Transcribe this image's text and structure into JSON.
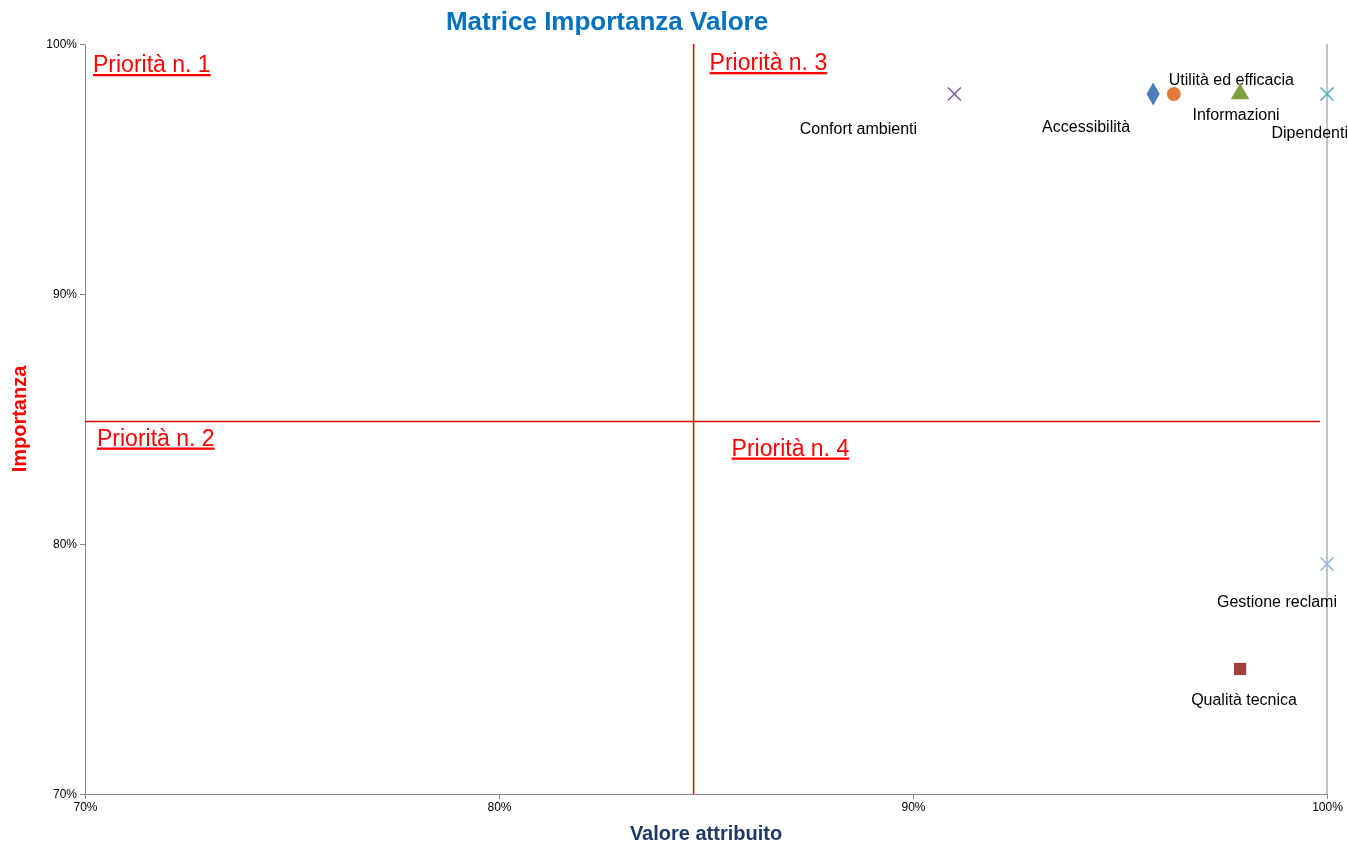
{
  "chart_data": {
    "type": "scatter",
    "title": "Matrice Importanza Valore",
    "xlabel": "Valore attribuito",
    "ylabel": "Importanza",
    "xlim": [
      70,
      100
    ],
    "ylim": [
      70,
      100
    ],
    "xticks": [
      {
        "value": 70,
        "label": "70%"
      },
      {
        "value": 80,
        "label": "80%"
      },
      {
        "value": 90,
        "label": "90%"
      },
      {
        "value": 100,
        "label": "100%"
      }
    ],
    "yticks": [
      {
        "value": 70,
        "label": "70%"
      },
      {
        "value": 80,
        "label": "80%"
      },
      {
        "value": 90,
        "label": "90%"
      },
      {
        "value": 100,
        "label": "100%"
      }
    ],
    "grid": false,
    "legend": false,
    "series": [
      {
        "name": "Accessibilità",
        "color": "#4a7ebb",
        "marker": "diamond",
        "x": [
          95.8
        ],
        "values": [
          98.0
        ]
      },
      {
        "name": "Utilità ed efficacia",
        "color": "#e07b39",
        "marker": "circle",
        "x": [
          96.3
        ],
        "values": [
          98.0
        ]
      },
      {
        "name": "Informazioni",
        "color": "#7f9f3f",
        "marker": "triangle",
        "x": [
          97.9
        ],
        "values": [
          98.0
        ]
      },
      {
        "name": "Dipendenti",
        "color": "#4bacc6",
        "marker": "cross",
        "x": [
          100
        ],
        "values": [
          98.0
        ]
      },
      {
        "name": "Confort ambienti",
        "color": "#7f5f9f",
        "marker": "cross",
        "x": [
          91.0
        ],
        "values": [
          98.0
        ]
      },
      {
        "name": "Gestione reclami",
        "color": "#8eb4e3",
        "marker": "cross",
        "x": [
          100
        ],
        "values": [
          79.2
        ]
      },
      {
        "name": "Qualità tecnica",
        "color": "#a0403f",
        "marker": "square",
        "x": [
          97.9
        ],
        "values": [
          75.0
        ]
      }
    ],
    "ref_lines": [
      {
        "axis": "x",
        "value": 84.7,
        "color": "#e00000"
      },
      {
        "axis": "y",
        "value": 84.9,
        "color": "#e00000"
      }
    ],
    "annotations": [
      "Priorità n. 1",
      "Priorità n. 2",
      "Priorità n. 3",
      "Priorità n. 4"
    ]
  }
}
